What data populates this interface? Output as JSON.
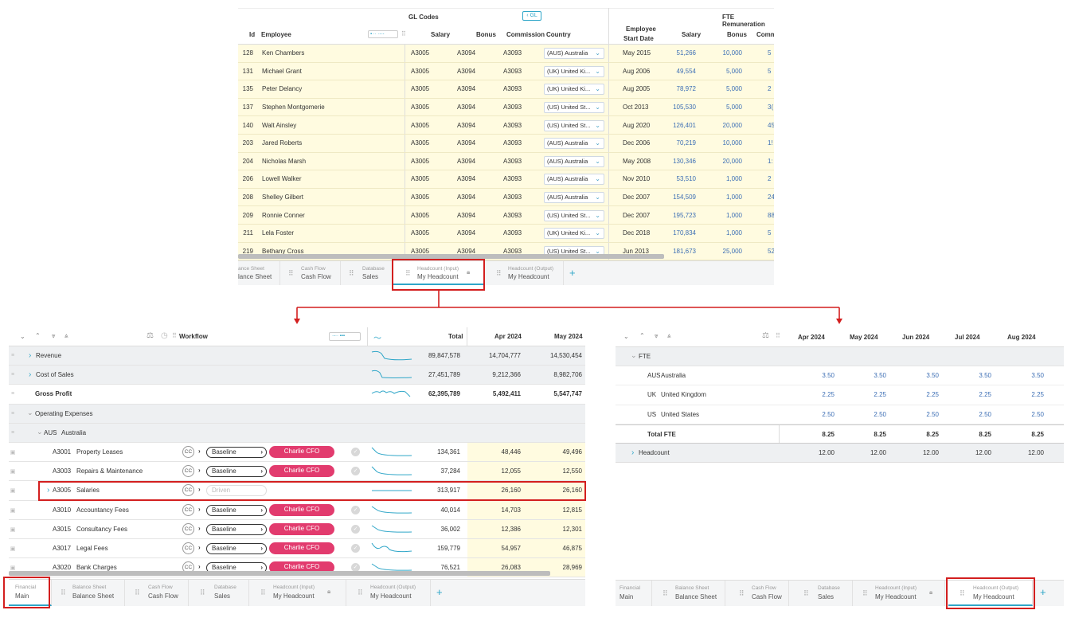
{
  "top_panel": {
    "group_gl": "GL Codes",
    "gl_toggle": "GL",
    "group_fte": "FTE Remuneration",
    "cols": {
      "id": "Id",
      "employee": "Employee",
      "salary": "Salary",
      "bonus": "Bonus",
      "commission": "Commission",
      "country": "Country",
      "start1": "Employee",
      "start2": "Start Date",
      "fte_salary": "Salary",
      "fte_bonus": "Bonus",
      "fte_comm": "Comm"
    },
    "rows": [
      {
        "id": "128",
        "name": "Ken Chambers",
        "sal": "A3005",
        "bon": "A3094",
        "com": "A3093",
        "country": "(AUS) Australia",
        "start": "May 2015",
        "fsal": "51,266",
        "fbon": "10,000",
        "fcom": "5"
      },
      {
        "id": "131",
        "name": "Michael Grant",
        "sal": "A3005",
        "bon": "A3094",
        "com": "A3093",
        "country": "(UK) United Ki...",
        "start": "Aug 2006",
        "fsal": "49,554",
        "fbon": "5,000",
        "fcom": "5"
      },
      {
        "id": "135",
        "name": "Peter Delancy",
        "sal": "A3005",
        "bon": "A3094",
        "com": "A3093",
        "country": "(UK) United Ki...",
        "start": "Aug 2005",
        "fsal": "78,972",
        "fbon": "5,000",
        "fcom": "2"
      },
      {
        "id": "137",
        "name": "Stephen Montgomerie",
        "sal": "A3005",
        "bon": "A3094",
        "com": "A3093",
        "country": "(US) United St...",
        "start": "Oct 2013",
        "fsal": "105,530",
        "fbon": "5,000",
        "fcom": "3("
      },
      {
        "id": "140",
        "name": "Walt Ainsley",
        "sal": "A3005",
        "bon": "A3094",
        "com": "A3093",
        "country": "(US) United St...",
        "start": "Aug 2020",
        "fsal": "126,401",
        "fbon": "20,000",
        "fcom": "45"
      },
      {
        "id": "203",
        "name": "Jared Roberts",
        "sal": "A3005",
        "bon": "A3094",
        "com": "A3093",
        "country": "(AUS) Australia",
        "start": "Dec 2006",
        "fsal": "70,219",
        "fbon": "10,000",
        "fcom": "1!"
      },
      {
        "id": "204",
        "name": "Nicholas Marsh",
        "sal": "A3005",
        "bon": "A3094",
        "com": "A3093",
        "country": "(AUS) Australia",
        "start": "May 2008",
        "fsal": "130,346",
        "fbon": "20,000",
        "fcom": "1:"
      },
      {
        "id": "206",
        "name": "Lowell Walker",
        "sal": "A3005",
        "bon": "A3094",
        "com": "A3093",
        "country": "(AUS) Australia",
        "start": "Nov 2010",
        "fsal": "53,510",
        "fbon": "1,000",
        "fcom": "2"
      },
      {
        "id": "208",
        "name": "Shelley Gilbert",
        "sal": "A3005",
        "bon": "A3094",
        "com": "A3093",
        "country": "(AUS) Australia",
        "start": "Dec 2007",
        "fsal": "154,509",
        "fbon": "1,000",
        "fcom": "24"
      },
      {
        "id": "209",
        "name": "Ronnie Conner",
        "sal": "A3005",
        "bon": "A3094",
        "com": "A3093",
        "country": "(US) United St...",
        "start": "Dec 2007",
        "fsal": "195,723",
        "fbon": "1,000",
        "fcom": "88"
      },
      {
        "id": "211",
        "name": "Lela Foster",
        "sal": "A3005",
        "bon": "A3094",
        "com": "A3093",
        "country": "(UK) United Ki...",
        "start": "Dec 2018",
        "fsal": "170,834",
        "fbon": "1,000",
        "fcom": "5"
      },
      {
        "id": "219",
        "name": "Bethany Cross",
        "sal": "A3005",
        "bon": "A3094",
        "com": "A3093",
        "country": "(US) United St...",
        "start": "Jun 2013",
        "fsal": "181,673",
        "fbon": "25,000",
        "fcom": "52"
      }
    ],
    "tabs": [
      {
        "sub": "ance Sheet",
        "main": "lance Sheet"
      },
      {
        "sub": "Cash Flow",
        "main": "Cash Flow"
      },
      {
        "sub": "Database",
        "main": "Sales"
      },
      {
        "sub": "Headcount (Input)",
        "main": "My Headcount"
      },
      {
        "sub": "Headcount (Output)",
        "main": "My Headcount"
      }
    ],
    "add": "+"
  },
  "left_panel": {
    "workflow": "Workflow",
    "total": "Total",
    "m1": "Apr 2024",
    "m2": "May 2024",
    "rows": [
      {
        "label": "Revenue",
        "total": "89,847,578",
        "m1": "14,704,777",
        "m2": "14,530,454"
      },
      {
        "label": "Cost of Sales",
        "total": "27,451,789",
        "m1": "9,212,366",
        "m2": "8,982,706"
      },
      {
        "label": "Gross Profit",
        "total": "62,395,789",
        "m1": "5,492,411",
        "m2": "5,547,747"
      },
      {
        "label": "Operating Expenses"
      },
      {
        "code": "AUS",
        "label": "Australia"
      },
      {
        "code": "A3001",
        "label": "Property Leases",
        "total": "134,361",
        "m1": "48,446",
        "m2": "49,496"
      },
      {
        "code": "A3003",
        "label": "Repairs & Maintenance",
        "total": "37,284",
        "m1": "12,055",
        "m2": "12,550"
      },
      {
        "code": "A3005",
        "label": "Salaries",
        "total": "313,917",
        "m1": "26,160",
        "m2": "26,160"
      },
      {
        "code": "A3010",
        "label": "Accountancy Fees",
        "total": "40,014",
        "m1": "14,703",
        "m2": "12,815"
      },
      {
        "code": "A3015",
        "label": "Consultancy Fees",
        "total": "36,002",
        "m1": "12,386",
        "m2": "12,301"
      },
      {
        "code": "A3017",
        "label": "Legal Fees",
        "total": "159,779",
        "m1": "54,957",
        "m2": "46,875"
      },
      {
        "code": "A3020",
        "label": "Bank Charges",
        "total": "76,521",
        "m1": "26,083",
        "m2": "28,969"
      }
    ],
    "cc": "CC",
    "baseline": "Baseline",
    "driven": "Driven",
    "cfo": "Charlie CFO",
    "tabs": [
      {
        "sub": "Financial",
        "main": "Main"
      },
      {
        "sub": "Balance Sheet",
        "main": "Balance Sheet"
      },
      {
        "sub": "Cash Flow",
        "main": "Cash Flow"
      },
      {
        "sub": "Database",
        "main": "Sales"
      },
      {
        "sub": "Headcount (Input)",
        "main": "My Headcount"
      },
      {
        "sub": "Headcount (Output)",
        "main": "My Headcount"
      }
    ],
    "add": "+"
  },
  "right_panel": {
    "months": [
      "Apr 2024",
      "May 2024",
      "Jun 2024",
      "Jul 2024",
      "Aug 2024"
    ],
    "fte": "FTE",
    "rows": [
      {
        "code": "AUS",
        "label": "Australia",
        "vals": [
          "3.50",
          "3.50",
          "3.50",
          "3.50",
          "3.50"
        ]
      },
      {
        "code": "UK",
        "label": "United Kingdom",
        "vals": [
          "2.25",
          "2.25",
          "2.25",
          "2.25",
          "2.25"
        ]
      },
      {
        "code": "US",
        "label": "United States",
        "vals": [
          "2.50",
          "2.50",
          "2.50",
          "2.50",
          "2.50"
        ]
      }
    ],
    "total_label": "Total FTE",
    "total_vals": [
      "8.25",
      "8.25",
      "8.25",
      "8.25",
      "8.25"
    ],
    "headcount_label": "Headcount",
    "headcount_vals": [
      "12.00",
      "12.00",
      "12.00",
      "12.00",
      "12.00"
    ],
    "tabs": [
      {
        "sub": "Financial",
        "main": "Main"
      },
      {
        "sub": "Balance Sheet",
        "main": "Balance Sheet"
      },
      {
        "sub": "Cash Flow",
        "main": "Cash Flow"
      },
      {
        "sub": "Database",
        "main": "Sales"
      },
      {
        "sub": "Headcount (Input)",
        "main": "My Headcount"
      },
      {
        "sub": "Headcount (Output)",
        "main": "My Headcount"
      }
    ],
    "add": "+"
  },
  "colors": {
    "highlight": "#d31f1f",
    "yellow": "#fffbe0",
    "accent": "#2fa6c8",
    "cfo": "#e23b6e"
  }
}
